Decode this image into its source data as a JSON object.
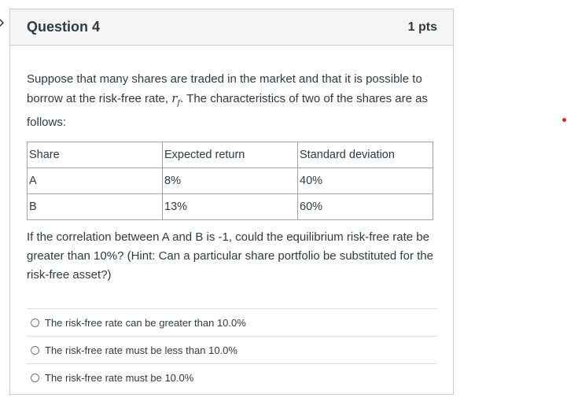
{
  "question": {
    "title": "Question 4",
    "points": "1 pts",
    "text_part1": "Suppose that many shares are traded in the market and that it is possible to borrow at the risk-free rate, ",
    "rf_symbol": "r",
    "rf_subscript": "f",
    "text_part2": ". The characteristics of two of the shares are as follows:",
    "table": {
      "headers": [
        "Share",
        "Expected return",
        "Standard deviation"
      ],
      "rows": [
        [
          "A",
          "8%",
          "40%"
        ],
        [
          "B",
          "13%",
          "60%"
        ]
      ]
    },
    "text_after_table": "If the correlation between A and B is -1, could the equilibrium risk-free rate be greater than 10%? (Hint: Can a particular share portfolio be substituted for the risk-free asset?)",
    "answers": [
      "The risk-free rate can be greater than 10.0%",
      "The risk-free rate must be less than 10.0%",
      "The risk-free rate must be 10.0%"
    ]
  },
  "colors": {
    "text": "#2d3b45",
    "header_bg": "#f5f5f5",
    "border": "#c7cdd1",
    "accent_dot": "#e0202a"
  }
}
